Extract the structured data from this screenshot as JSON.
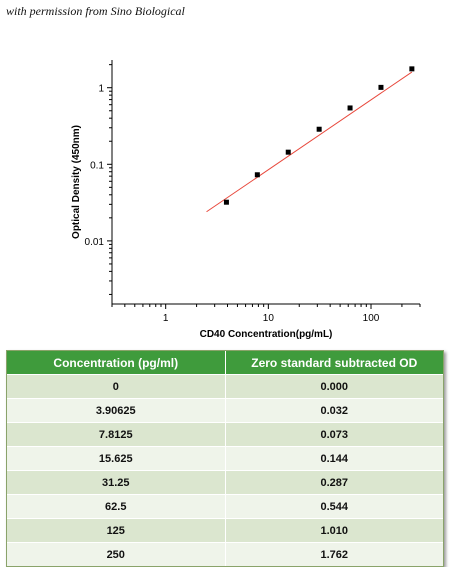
{
  "credit": "with permission from Sino Biological",
  "chart_data": {
    "type": "scatter",
    "x_scale": "log",
    "y_scale": "log",
    "xlabel": "CD40 Concentration(pg/mL)",
    "ylabel": "Optical Density (450nm)",
    "xlim": [
      0.3,
      300
    ],
    "ylim": [
      0.0015,
      2.3
    ],
    "x_ticks": [
      1,
      10,
      100
    ],
    "x_tick_labels": [
      "1",
      "10",
      "100"
    ],
    "y_ticks": [
      0.01,
      0.1,
      1
    ],
    "y_tick_labels": [
      "0.01",
      "0.1",
      "1"
    ],
    "series": [
      {
        "x": [
          3.90625,
          7.8125,
          15.625,
          31.25,
          62.5,
          125,
          250
        ],
        "y": [
          0.032,
          0.073,
          0.144,
          0.287,
          0.544,
          1.01,
          1.762
        ],
        "marker_color": "#000000"
      }
    ],
    "fit_line": {
      "x": [
        2.5,
        250
      ],
      "y": [
        0.024,
        1.6
      ],
      "color": "#e8483c"
    },
    "grid": false
  },
  "table": {
    "headers": [
      "Concentration (pg/ml)",
      "Zero standard subtracted OD"
    ],
    "rows": [
      [
        "0",
        "0.000"
      ],
      [
        "3.90625",
        "0.032"
      ],
      [
        "7.8125",
        "0.073"
      ],
      [
        "15.625",
        "0.144"
      ],
      [
        "31.25",
        "0.287"
      ],
      [
        "62.5",
        "0.544"
      ],
      [
        "125",
        "1.010"
      ],
      [
        "250",
        "1.762"
      ]
    ],
    "header_color": "#3f9b3c",
    "row_colors": [
      "#dbe6cf",
      "#eff4ea"
    ]
  }
}
